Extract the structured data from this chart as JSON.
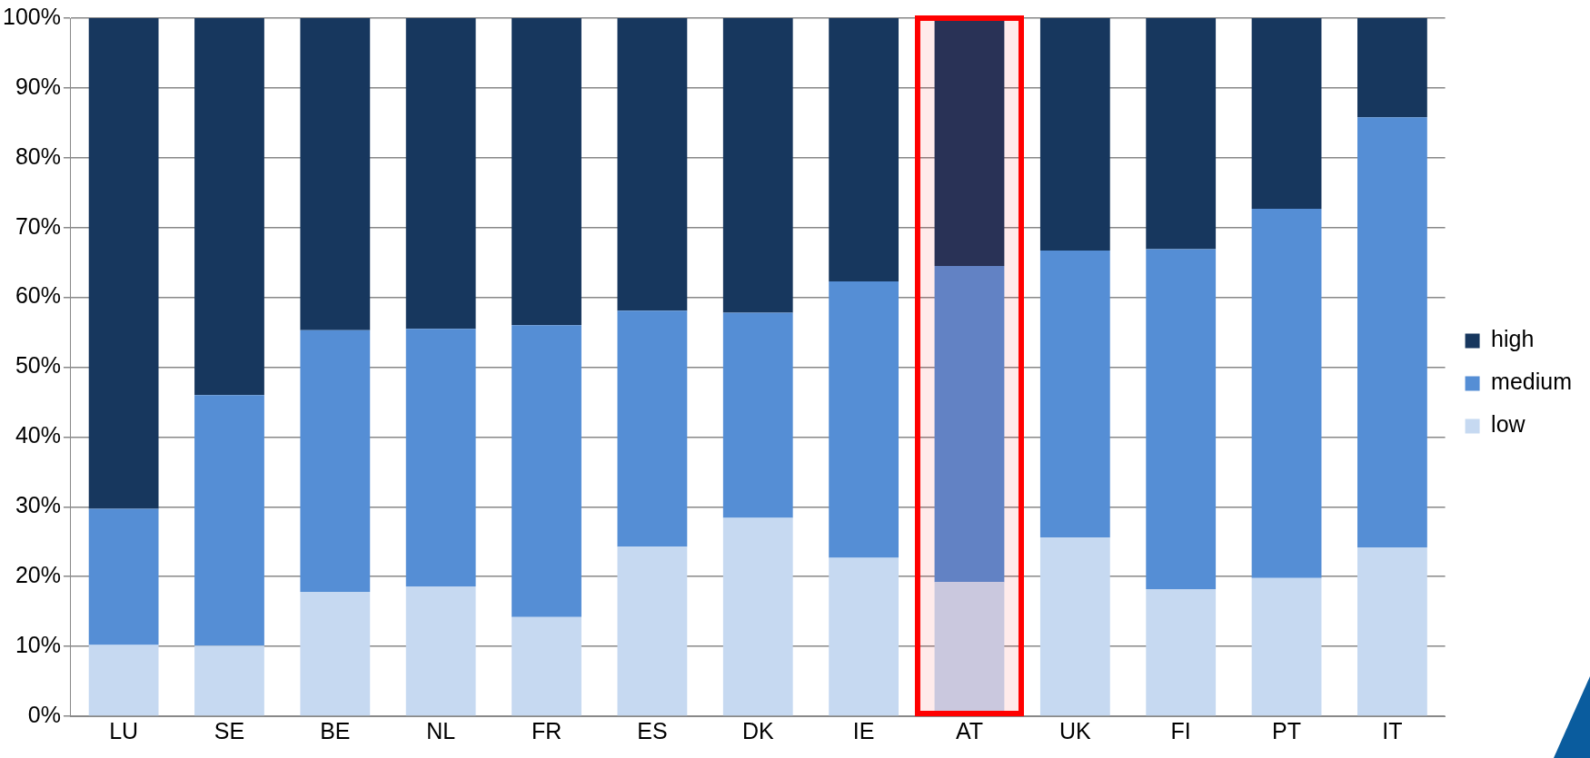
{
  "chart_data": {
    "type": "bar",
    "stacked": true,
    "categories": [
      "LU",
      "SE",
      "BE",
      "NL",
      "FR",
      "ES",
      "DK",
      "IE",
      "AT",
      "UK",
      "FI",
      "PT",
      "IT"
    ],
    "series": [
      {
        "name": "low",
        "color": "#c6d9f1",
        "values": [
          10.2,
          10.1,
          17.8,
          18.6,
          14.2,
          24.3,
          28.4,
          22.7,
          19.2,
          25.6,
          18.2,
          19.8,
          24.2
        ]
      },
      {
        "name": "medium",
        "color": "#558ed5",
        "values": [
          19.5,
          35.9,
          37.5,
          36.9,
          41.8,
          33.8,
          29.4,
          39.6,
          45.3,
          41.1,
          48.7,
          52.9,
          61.6
        ]
      },
      {
        "name": "high",
        "color": "#17375e",
        "values": [
          70.3,
          54,
          44.7,
          44.5,
          44,
          41.9,
          42.2,
          37.7,
          35.5,
          33.3,
          33.1,
          27.3,
          14.2
        ]
      }
    ],
    "ylim": [
      0,
      100
    ],
    "yticks": [
      {
        "value": 0,
        "label": "0%"
      },
      {
        "value": 10,
        "label": "10%"
      },
      {
        "value": 20,
        "label": "20%"
      },
      {
        "value": 30,
        "label": "30%"
      },
      {
        "value": 40,
        "label": "40%"
      },
      {
        "value": 50,
        "label": "50%"
      },
      {
        "value": 60,
        "label": "60%"
      },
      {
        "value": 70,
        "label": "70%"
      },
      {
        "value": 80,
        "label": "80%"
      },
      {
        "value": 90,
        "label": "90%"
      },
      {
        "value": 100,
        "label": "100%"
      }
    ],
    "grid": "y",
    "legend": "right",
    "bands": [
      {
        "axis": "x",
        "from": "AT",
        "to": "AT",
        "color": "#ff0000"
      }
    ]
  }
}
